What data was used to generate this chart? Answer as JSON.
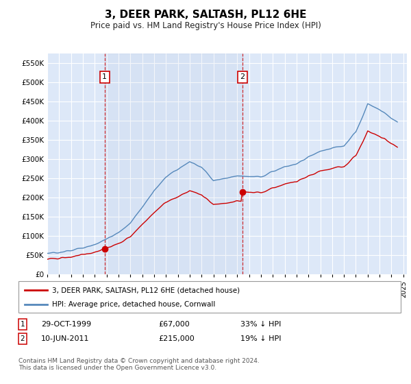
{
  "title": "3, DEER PARK, SALTASH, PL12 6HE",
  "subtitle": "Price paid vs. HM Land Registry's House Price Index (HPI)",
  "ylim": [
    0,
    575000
  ],
  "yticks": [
    0,
    50000,
    100000,
    150000,
    200000,
    250000,
    300000,
    350000,
    400000,
    450000,
    500000,
    550000
  ],
  "xlim_start": 1995.0,
  "xlim_end": 2025.3,
  "legend_line1": "3, DEER PARK, SALTASH, PL12 6HE (detached house)",
  "legend_line2": "HPI: Average price, detached house, Cornwall",
  "sale1_date": "29-OCT-1999",
  "sale1_price": "£67,000",
  "sale1_hpi": "33% ↓ HPI",
  "sale2_date": "10-JUN-2011",
  "sale2_price": "£215,000",
  "sale2_hpi": "19% ↓ HPI",
  "footer": "Contains HM Land Registry data © Crown copyright and database right 2024.\nThis data is licensed under the Open Government Licence v3.0.",
  "sale_color": "#cc0000",
  "hpi_color": "#5588bb",
  "background_color": "#dde8f8",
  "sale1_x": 1999.83,
  "sale2_x": 2011.44,
  "sale1_y": 67000,
  "sale2_y": 215000,
  "xtick_years": [
    1995,
    1996,
    1997,
    1998,
    1999,
    2000,
    2001,
    2002,
    2003,
    2004,
    2005,
    2006,
    2007,
    2008,
    2009,
    2010,
    2011,
    2012,
    2013,
    2014,
    2015,
    2016,
    2017,
    2018,
    2019,
    2020,
    2021,
    2022,
    2023,
    2024,
    2025
  ]
}
